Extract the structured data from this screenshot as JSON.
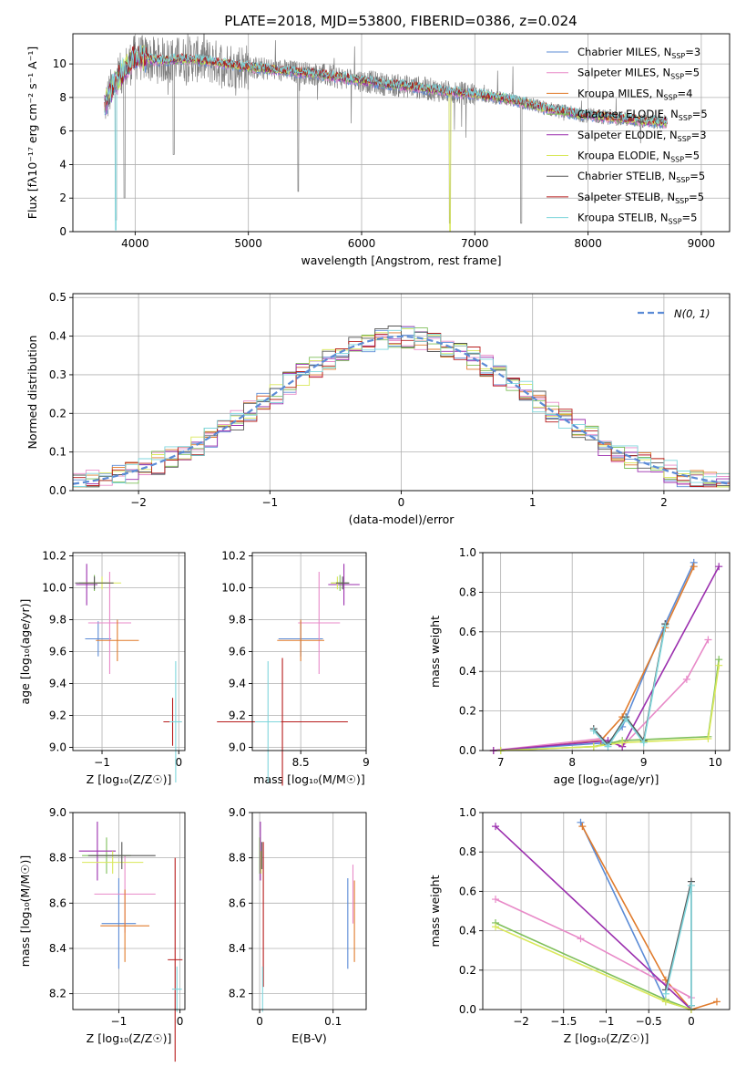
{
  "figure": {
    "title": "PLATE=2018, MJD=53800, FIBERID=0386, z=0.024"
  },
  "colors": {
    "Chabrier MILES": "#5b8bd6",
    "Salpeter MILES": "#e88ac8",
    "Kroupa MILES": "#e07b2c",
    "Chabrier ELODIE": "#7fbf5a",
    "Salpeter ELODIE": "#9b2fae",
    "Kroupa ELODIE": "#d9e85a",
    "Chabrier STELIB": "#555555",
    "Salpeter STELIB": "#b71c1c",
    "Kroupa STELIB": "#7fd6dc",
    "data": "#808080",
    "gaussian": "#5b8bd6"
  },
  "chart_data": [
    {
      "id": "spectrum",
      "type": "line",
      "xlabel": "wavelength [Angstrom, rest frame]",
      "ylabel": "Flux [f$_\\lambda$10$^{-17}$ erg cm$^{-2}$ s$^{-1}$ A$^{-1}$]",
      "xlim": [
        3450,
        9250
      ],
      "ylim": [
        0,
        11.8
      ],
      "xticks": [
        4000,
        5000,
        6000,
        7000,
        8000,
        9000
      ],
      "yticks": [
        0,
        2,
        4,
        6,
        8,
        10
      ],
      "legend_position": "top-right",
      "legend": [
        {
          "model": "Chabrier MILES",
          "text": "Chabrier MILES, N",
          "sub": "SSP",
          "n": "=3"
        },
        {
          "model": "Salpeter MILES",
          "text": "Salpeter MILES, N",
          "sub": "SSP",
          "n": "=5"
        },
        {
          "model": "Kroupa MILES",
          "text": "Kroupa MILES, N",
          "sub": "SSP",
          "n": "=4"
        },
        {
          "model": "Chabrier ELODIE",
          "text": "Chabrier ELODIE, N",
          "sub": "SSP",
          "n": "=5"
        },
        {
          "model": "Salpeter ELODIE",
          "text": "Salpeter ELODIE, N",
          "sub": "SSP",
          "n": "=3"
        },
        {
          "model": "Kroupa ELODIE",
          "text": "Kroupa ELODIE, N",
          "sub": "SSP",
          "n": "=5"
        },
        {
          "model": "Chabrier STELIB",
          "text": "Chabrier STELIB, N",
          "sub": "SSP",
          "n": "=5"
        },
        {
          "model": "Salpeter STELIB",
          "text": "Salpeter STELIB, N",
          "sub": "SSP",
          "n": "=5"
        },
        {
          "model": "Kroupa STELIB",
          "text": "Kroupa STELIB, N",
          "sub": "SSP",
          "n": "=5"
        }
      ],
      "continuum": {
        "x": [
          3730,
          3800,
          3900,
          4000,
          4200,
          4500,
          4800,
          5000,
          5300,
          5600,
          5900,
          6200,
          6500,
          6800,
          7000,
          7300,
          7600,
          7900,
          8200,
          8500,
          8700
        ],
        "y": [
          7.5,
          8.6,
          9.6,
          10.4,
          10.2,
          10.3,
          10.0,
          9.8,
          9.6,
          9.4,
          9.1,
          8.8,
          8.6,
          8.3,
          8.2,
          7.9,
          7.4,
          7.0,
          6.8,
          6.6,
          6.5
        ]
      },
      "features": [
        {
          "x": 3830,
          "y": 0.2,
          "note": "dip"
        },
        {
          "x": 3905,
          "y": 1.5,
          "note": "dip"
        },
        {
          "x": 4340,
          "y": 4.1,
          "note": "dip"
        },
        {
          "x": 4860,
          "y": 8.2,
          "note": "dip"
        },
        {
          "x": 5440,
          "y": 1.9,
          "note": "dip"
        },
        {
          "x": 6780,
          "y": 0.0,
          "note": "dip"
        },
        {
          "x": 7410,
          "y": 0.0,
          "note": "dip"
        }
      ]
    },
    {
      "id": "residuals",
      "type": "step",
      "xlabel": "(data-model)/error",
      "ylabel": "Normed distribution",
      "xlim": [
        -2.5,
        2.5
      ],
      "ylim": [
        0,
        0.51
      ],
      "xticks": [
        -2,
        -1,
        0,
        1,
        2
      ],
      "yticks": [
        0.0,
        0.1,
        0.2,
        0.3,
        0.4,
        0.5
      ],
      "legend_position": "top-right",
      "gaussian_label": "N(0, 1)",
      "bin_width": 0.1,
      "hist_base": [
        0.025,
        0.03,
        0.035,
        0.04,
        0.05,
        0.06,
        0.07,
        0.08,
        0.09,
        0.1,
        0.11,
        0.12,
        0.14,
        0.155,
        0.17,
        0.185,
        0.2,
        0.215,
        0.23,
        0.245,
        0.26,
        0.275,
        0.29,
        0.305,
        0.32,
        0.335,
        0.35,
        0.36,
        0.37,
        0.38,
        0.39,
        0.395,
        0.4,
        0.405,
        0.41,
        0.415,
        0.41,
        0.405,
        0.4,
        0.39,
        0.38,
        0.37,
        0.36,
        0.345,
        0.33,
        0.315,
        0.3,
        0.285,
        0.27,
        0.255,
        0.24,
        0.225,
        0.21,
        0.195,
        0.18,
        0.165,
        0.15,
        0.135,
        0.12,
        0.105,
        0.095,
        0.085,
        0.075,
        0.065,
        0.058,
        0.05,
        0.045,
        0.04,
        0.035,
        0.03,
        0.027,
        0.025
      ]
    },
    {
      "id": "age-vs-Z",
      "type": "errorbar",
      "xlabel": "Z [log10(Z/Z☉)]",
      "ylabel": "age  [log10(age/yr)]",
      "xlim": [
        -1.38,
        0.08
      ],
      "ylim": [
        8.98,
        10.22
      ],
      "xticks": [
        -1,
        0
      ],
      "yticks": [
        9.0,
        9.2,
        9.4,
        9.6,
        9.8,
        10.0,
        10.2
      ],
      "points": [
        {
          "model": "Chabrier MILES",
          "x": -1.05,
          "xe": 0.17,
          "y": 9.68,
          "ye": 0.11
        },
        {
          "model": "Salpeter MILES",
          "x": -0.9,
          "xe": 0.28,
          "y": 9.78,
          "ye": 0.32
        },
        {
          "model": "Kroupa MILES",
          "x": -0.8,
          "xe": 0.28,
          "y": 9.67,
          "ye": 0.13
        },
        {
          "model": "Chabrier ELODIE",
          "x": -1.1,
          "xe": 0.2,
          "y": 10.03,
          "ye": 0.05
        },
        {
          "model": "Salpeter ELODIE",
          "x": -1.2,
          "xe": 0.14,
          "y": 10.02,
          "ye": 0.13
        },
        {
          "model": "Kroupa ELODIE",
          "x": -1.0,
          "xe": 0.25,
          "y": 10.03,
          "ye": 0.04
        },
        {
          "model": "Chabrier STELIB",
          "x": -1.1,
          "xe": 0.25,
          "y": 10.03,
          "ye": 0.04
        },
        {
          "model": "Salpeter STELIB",
          "x": -0.08,
          "xe": 0.12,
          "y": 9.16,
          "ye": 0.15
        },
        {
          "model": "Kroupa STELIB",
          "x": -0.04,
          "xe": 0.08,
          "y": 9.16,
          "ye": 0.38
        }
      ]
    },
    {
      "id": "age-vs-mass",
      "type": "errorbar",
      "xlabel": "mass [log10(M/M☉)]",
      "ylabel": "",
      "xlim": [
        8.13,
        9.0
      ],
      "ylim": [
        8.98,
        10.22
      ],
      "xticks": [
        8.5,
        9.0
      ],
      "yticks": [
        9.0,
        9.2,
        9.4,
        9.6,
        9.8,
        10.0,
        10.2
      ],
      "points": [
        {
          "model": "Chabrier MILES",
          "x": 8.5,
          "xe": 0.17,
          "y": 9.68,
          "ye": 0.11
        },
        {
          "model": "Salpeter MILES",
          "x": 8.64,
          "xe": 0.16,
          "y": 9.78,
          "ye": 0.32
        },
        {
          "model": "Kroupa MILES",
          "x": 8.5,
          "xe": 0.18,
          "y": 9.67,
          "ye": 0.13
        },
        {
          "model": "Chabrier ELODIE",
          "x": 8.8,
          "xe": 0.07,
          "y": 10.03,
          "ye": 0.05
        },
        {
          "model": "Salpeter ELODIE",
          "x": 8.83,
          "xe": 0.12,
          "y": 10.02,
          "ye": 0.13
        },
        {
          "model": "Kroupa ELODIE",
          "x": 8.78,
          "xe": 0.05,
          "y": 10.03,
          "ye": 0.04
        },
        {
          "model": "Chabrier STELIB",
          "x": 8.82,
          "xe": 0.05,
          "y": 10.03,
          "ye": 0.04
        },
        {
          "model": "Salpeter STELIB",
          "x": 8.36,
          "xe": 0.5,
          "y": 9.16,
          "ye": 0.4
        },
        {
          "model": "Kroupa STELIB",
          "x": 8.25,
          "xe": 0.1,
          "y": 9.16,
          "ye": 0.38
        }
      ]
    },
    {
      "id": "weight-vs-age",
      "type": "line",
      "xlabel": "age  [log10(age/yr)]",
      "ylabel": "mass weight",
      "xlim": [
        6.75,
        10.2
      ],
      "ylim": [
        0,
        1.0
      ],
      "xticks": [
        7,
        8,
        9,
        10
      ],
      "yticks": [
        0.0,
        0.2,
        0.4,
        0.6,
        0.8,
        1.0
      ],
      "series": [
        {
          "model": "Chabrier MILES",
          "x": [
            6.9,
            8.5,
            8.7,
            9.3,
            9.7
          ],
          "y": [
            0.0,
            0.04,
            0.12,
            0.64,
            0.95
          ]
        },
        {
          "model": "Kroupa MILES",
          "x": [
            6.9,
            8.4,
            8.7,
            9.3,
            9.7
          ],
          "y": [
            0.0,
            0.05,
            0.17,
            0.62,
            0.93
          ]
        },
        {
          "model": "Salpeter MILES",
          "x": [
            6.9,
            8.4,
            8.7,
            9.6,
            9.9
          ],
          "y": [
            0.0,
            0.06,
            0.02,
            0.36,
            0.56
          ]
        },
        {
          "model": "Salpeter ELODIE",
          "x": [
            6.9,
            8.5,
            8.7,
            10.05
          ],
          "y": [
            0.0,
            0.05,
            0.02,
            0.93
          ]
        },
        {
          "model": "Chabrier ELODIE",
          "x": [
            7.0,
            8.3,
            8.7,
            9.9,
            10.05
          ],
          "y": [
            0.0,
            0.02,
            0.05,
            0.07,
            0.46
          ]
        },
        {
          "model": "Kroupa ELODIE",
          "x": [
            7.0,
            8.3,
            8.7,
            9.9,
            10.05
          ],
          "y": [
            0.0,
            0.02,
            0.04,
            0.06,
            0.43
          ]
        },
        {
          "model": "Chabrier STELIB",
          "x": [
            8.3,
            8.5,
            8.75,
            9.0,
            9.3
          ],
          "y": [
            0.11,
            0.03,
            0.17,
            0.05,
            0.64
          ]
        },
        {
          "model": "Kroupa STELIB",
          "x": [
            8.3,
            8.5,
            8.75,
            9.0,
            9.3
          ],
          "y": [
            0.1,
            0.02,
            0.16,
            0.04,
            0.63
          ]
        }
      ]
    },
    {
      "id": "mass-vs-Z",
      "type": "errorbar",
      "xlabel": "Z [log10(Z/Z☉)]",
      "ylabel": "mass [log10(M/M☉)]",
      "xlim": [
        -1.75,
        0.08
      ],
      "ylim": [
        8.13,
        9.0
      ],
      "xticks": [
        -1,
        0
      ],
      "yticks": [
        8.2,
        8.4,
        8.6,
        8.8,
        9.0
      ],
      "points": [
        {
          "model": "Chabrier MILES",
          "x": -1.0,
          "xe": 0.28,
          "y": 8.51,
          "ye": 0.2
        },
        {
          "model": "Salpeter MILES",
          "x": -0.9,
          "xe": 0.5,
          "y": 8.64,
          "ye": 0.17
        },
        {
          "model": "Kroupa MILES",
          "x": -0.9,
          "xe": 0.4,
          "y": 8.5,
          "ye": 0.16
        },
        {
          "model": "Chabrier ELODIE",
          "x": -1.2,
          "xe": 0.4,
          "y": 8.81,
          "ye": 0.08
        },
        {
          "model": "Salpeter ELODIE",
          "x": -1.35,
          "xe": 0.3,
          "y": 8.83,
          "ye": 0.13
        },
        {
          "model": "Kroupa ELODIE",
          "x": -1.1,
          "xe": 0.5,
          "y": 8.78,
          "ye": 0.05
        },
        {
          "model": "Chabrier STELIB",
          "x": -0.95,
          "xe": 0.55,
          "y": 8.81,
          "ye": 0.06
        },
        {
          "model": "Salpeter STELIB",
          "x": -0.08,
          "xe": 0.12,
          "y": 8.35,
          "ye": 0.45
        },
        {
          "model": "Kroupa STELIB",
          "x": -0.05,
          "xe": 0.08,
          "y": 8.22,
          "ye": 0.1
        }
      ]
    },
    {
      "id": "mass-vs-EBV",
      "type": "errorbar",
      "xlabel": "E(B-V)",
      "ylabel": "",
      "xlim": [
        -0.01,
        0.145
      ],
      "ylim": [
        8.13,
        9.0
      ],
      "xticks": [
        0.0,
        0.1
      ],
      "yticks": [
        8.2,
        8.4,
        8.6,
        8.8,
        9.0
      ],
      "points": [
        {
          "model": "Chabrier MILES",
          "x": 0.12,
          "xe": 0.0,
          "y": 8.51,
          "ye": 0.2
        },
        {
          "model": "Salpeter MILES",
          "x": 0.127,
          "xe": 0.0,
          "y": 8.64,
          "ye": 0.13
        },
        {
          "model": "Kroupa MILES",
          "x": 0.129,
          "xe": 0.0,
          "y": 8.52,
          "ye": 0.18
        },
        {
          "model": "Chabrier ELODIE",
          "x": 0.0,
          "xe": 0.0,
          "y": 8.81,
          "ye": 0.08
        },
        {
          "model": "Salpeter ELODIE",
          "x": 0.001,
          "xe": 0.0,
          "y": 8.83,
          "ye": 0.13
        },
        {
          "model": "Kroupa ELODIE",
          "x": 0.002,
          "xe": 0.0,
          "y": 8.78,
          "ye": 0.05
        },
        {
          "model": "Chabrier STELIB",
          "x": 0.003,
          "xe": 0.0,
          "y": 8.81,
          "ye": 0.06
        },
        {
          "model": "Salpeter STELIB",
          "x": 0.005,
          "xe": 0.0,
          "y": 8.55,
          "ye": 0.32
        },
        {
          "model": "Kroupa STELIB",
          "x": 0.004,
          "xe": 0.0,
          "y": 8.22,
          "ye": 0.1
        }
      ]
    },
    {
      "id": "weight-vs-Z",
      "type": "line",
      "xlabel": "Z [log10(Z/Z☉)]",
      "ylabel": "mass weight",
      "xlim": [
        -2.45,
        0.45
      ],
      "ylim": [
        0,
        1.0
      ],
      "xticks": [
        -2.0,
        -1.5,
        -1.0,
        -0.5,
        0.0
      ],
      "yticks": [
        0.0,
        0.2,
        0.4,
        0.6,
        0.8,
        1.0
      ],
      "series": [
        {
          "model": "Chabrier MILES",
          "x": [
            -1.3,
            -0.3,
            0.0
          ],
          "y": [
            0.95,
            0.04,
            0.0
          ]
        },
        {
          "model": "Kroupa MILES",
          "x": [
            -1.28,
            -0.3,
            0.0,
            0.3
          ],
          "y": [
            0.93,
            0.15,
            0.0,
            0.04
          ]
        },
        {
          "model": "Salpeter MILES",
          "x": [
            -2.3,
            -1.3,
            0.0
          ],
          "y": [
            0.56,
            0.36,
            0.06
          ]
        },
        {
          "model": "Salpeter ELODIE",
          "x": [
            -2.3,
            0.0
          ],
          "y": [
            0.93,
            0.0
          ]
        },
        {
          "model": "Chabrier ELODIE",
          "x": [
            -2.3,
            -0.3,
            0.0
          ],
          "y": [
            0.44,
            0.05,
            0.0
          ]
        },
        {
          "model": "Kroupa ELODIE",
          "x": [
            -2.3,
            -0.3,
            0.0
          ],
          "y": [
            0.42,
            0.04,
            0.0
          ]
        },
        {
          "model": "Chabrier STELIB",
          "x": [
            -0.3,
            0.0,
            0.0
          ],
          "y": [
            0.1,
            0.65,
            0.02
          ]
        },
        {
          "model": "Kroupa STELIB",
          "x": [
            -0.3,
            0.0,
            0.0
          ],
          "y": [
            0.08,
            0.63,
            0.02
          ]
        }
      ]
    }
  ]
}
